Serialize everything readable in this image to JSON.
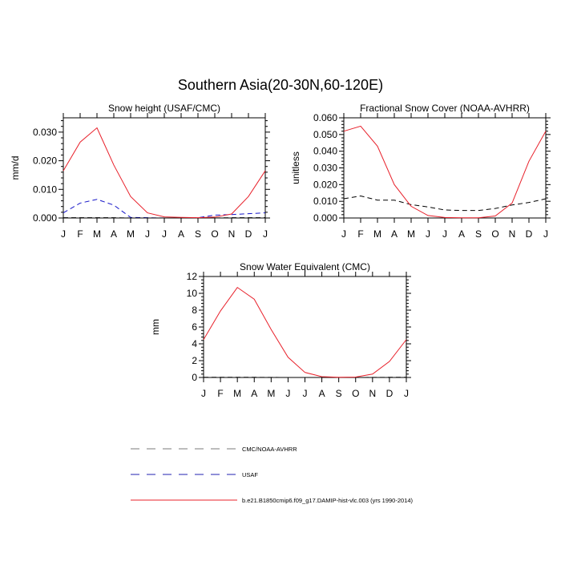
{
  "figure": {
    "title": "Southern Asia(20-30N,60-120E)"
  },
  "colors": {
    "model": "#e8202a",
    "usaf": "#1515c8",
    "obs": "#000000",
    "legend_obs": "#7a7a7a",
    "legend_usaf": "#2020b0",
    "legend_model": "#e8202a"
  },
  "legend": [
    {
      "key": "obs",
      "label": "CMC/NOAA-AVHRR",
      "dashed": true
    },
    {
      "key": "usaf",
      "label": "USAF",
      "dashed": true
    },
    {
      "key": "model",
      "label": "b.e21.B1850cmip6.f09_g17.DAMIP-hist-vlc.003 (yrs 1990-2014)",
      "dashed": false
    }
  ],
  "chart_data": [
    {
      "id": "snow-height",
      "type": "line",
      "title": "Snow height (USAF/CMC)",
      "ylabel": "mm/d",
      "xlabel": "",
      "categories": [
        "J",
        "F",
        "M",
        "A",
        "M",
        "J",
        "J",
        "A",
        "S",
        "O",
        "N",
        "D",
        "J"
      ],
      "ylim": [
        0,
        0.035
      ],
      "yticks": [
        0.0,
        0.01,
        0.02,
        0.03
      ],
      "ytick_labels": [
        "0.000",
        "0.010",
        "0.020",
        "0.030"
      ],
      "grid": false,
      "series": [
        {
          "name": "b.e21.B1850cmip6.f09_g17.DAMIP-hist-vlc.003 (yrs 1990-2014)",
          "color_key": "model",
          "dashed": false,
          "values": [
            0.0165,
            0.0265,
            0.0315,
            0.0185,
            0.0075,
            0.0018,
            0.0004,
            0.0002,
            0.0001,
            0.0003,
            0.0014,
            0.0075,
            0.0165
          ]
        },
        {
          "name": "USAF",
          "color_key": "usaf",
          "dashed": true,
          "values": [
            0.0018,
            0.0052,
            0.0065,
            0.0045,
            0.0002,
            0.0001,
            0.0,
            0.0,
            0.0001,
            0.001,
            0.0012,
            0.0015,
            0.0018
          ]
        },
        {
          "name": "CMC/NOAA-AVHRR",
          "color_key": "obs",
          "dashed": true,
          "values": [
            0.0001,
            0.0001,
            0.0001,
            0.0001,
            0.0,
            0.0,
            0.0,
            0.0,
            0.0,
            0.0,
            0.0001,
            0.0001,
            0.0001
          ]
        }
      ]
    },
    {
      "id": "fractional-snow-cover",
      "type": "line",
      "title": "Fractional Snow Cover (NOAA-AVHRR)",
      "ylabel": "unitless",
      "xlabel": "",
      "categories": [
        "J",
        "F",
        "M",
        "A",
        "M",
        "J",
        "J",
        "A",
        "S",
        "O",
        "N",
        "D",
        "J"
      ],
      "ylim": [
        0,
        0.06
      ],
      "yticks": [
        0.0,
        0.01,
        0.02,
        0.03,
        0.04,
        0.05,
        0.06
      ],
      "ytick_labels": [
        "0.000",
        "0.010",
        "0.020",
        "0.030",
        "0.040",
        "0.050",
        "0.060"
      ],
      "grid": false,
      "series": [
        {
          "name": "b.e21.B1850cmip6.f09_g17.DAMIP-hist-vlc.003 (yrs 1990-2014)",
          "color_key": "model",
          "dashed": false,
          "values": [
            0.052,
            0.055,
            0.043,
            0.02,
            0.007,
            0.0015,
            0.0003,
            0.0001,
            0.0001,
            0.0012,
            0.009,
            0.034,
            0.052
          ]
        },
        {
          "name": "CMC/NOAA-AVHRR",
          "color_key": "obs",
          "dashed": true,
          "values": [
            0.0115,
            0.0132,
            0.0107,
            0.0107,
            0.008,
            0.0066,
            0.0048,
            0.0045,
            0.0045,
            0.0057,
            0.0078,
            0.0093,
            0.0115
          ]
        }
      ]
    },
    {
      "id": "snow-water-equivalent",
      "type": "line",
      "title": "Snow Water Equivalent (CMC)",
      "ylabel": "mm",
      "xlabel": "",
      "categories": [
        "J",
        "F",
        "M",
        "A",
        "M",
        "J",
        "J",
        "A",
        "S",
        "O",
        "N",
        "D",
        "J"
      ],
      "ylim": [
        0,
        12
      ],
      "yticks": [
        0,
        2,
        4,
        6,
        8,
        10,
        12
      ],
      "ytick_labels": [
        "0",
        "2",
        "4",
        "6",
        "8",
        "10",
        "12"
      ],
      "grid": false,
      "series": [
        {
          "name": "b.e21.B1850cmip6.f09_g17.DAMIP-hist-vlc.003 (yrs 1990-2014)",
          "color_key": "model",
          "dashed": false,
          "values": [
            4.5,
            7.9,
            10.7,
            9.3,
            5.7,
            2.4,
            0.6,
            0.1,
            0.03,
            0.05,
            0.4,
            1.9,
            4.5
          ]
        },
        {
          "name": "CMC/NOAA-AVHRR",
          "color_key": "obs",
          "dashed": true,
          "values": [
            0.02,
            0.02,
            0.02,
            0.02,
            0.01,
            0.0,
            0.0,
            0.0,
            0.0,
            0.0,
            0.01,
            0.02,
            0.02
          ]
        }
      ]
    }
  ]
}
